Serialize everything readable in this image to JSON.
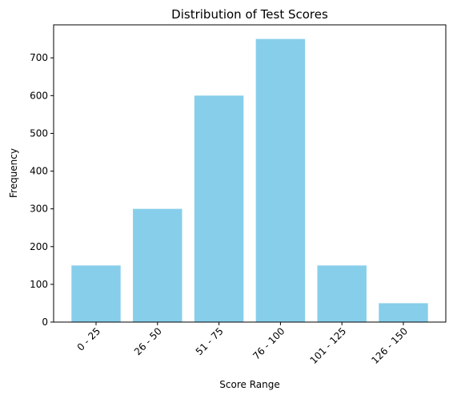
{
  "chart_data": {
    "type": "bar",
    "title": "Distribution of Test Scores",
    "xlabel": "Score Range",
    "ylabel": "Frequency",
    "categories": [
      "0 - 25",
      "26 - 50",
      "51 - 75",
      "76 - 100",
      "101 - 125",
      "126 - 150"
    ],
    "values": [
      150,
      300,
      600,
      750,
      150,
      50
    ],
    "ylim": [
      0,
      787.5
    ],
    "yticks": [
      0,
      100,
      200,
      300,
      400,
      500,
      600,
      700
    ],
    "bar_color": "#87CEEB",
    "grid": false,
    "xtick_rotation": 45
  }
}
